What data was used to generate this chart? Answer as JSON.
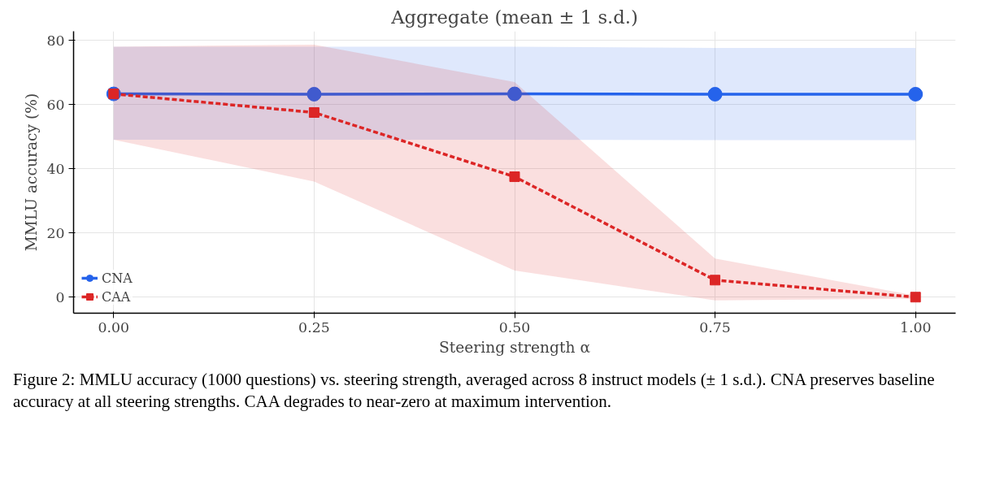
{
  "chart_data": {
    "type": "line",
    "title": "Aggregate (mean ± 1 s.d.)",
    "xlabel": "Steering strength α",
    "ylabel": "MMLU accuracy (%)",
    "x": [
      0,
      0.25,
      0.5,
      0.75,
      1.0
    ],
    "series": [
      {
        "name": "CNA",
        "color": "#2563eb",
        "marker": "circle",
        "line_style": "solid",
        "values": [
          63.3,
          63.2,
          63.3,
          63.2,
          63.2
        ],
        "lower": [
          49,
          49,
          49,
          48.9,
          48.9
        ],
        "upper": [
          78,
          78,
          78,
          77.6,
          77.6
        ]
      },
      {
        "name": "CAA",
        "color": "#dc2626",
        "marker": "square",
        "line_style": "dashed",
        "values": [
          63.3,
          57.5,
          37.5,
          5.3,
          0
        ],
        "lower": [
          49,
          36,
          8.3,
          -1,
          -0.5
        ],
        "upper": [
          78,
          78.6,
          67,
          12,
          0.5
        ]
      }
    ],
    "xlim": [
      -0.05,
      1.05
    ],
    "ylim": [
      -5,
      82.8
    ],
    "xticks": [
      {
        "value": 0,
        "label": "0.00"
      },
      {
        "value": 0.25,
        "label": "0.25"
      },
      {
        "value": 0.5,
        "label": "0.50"
      },
      {
        "value": 0.75,
        "label": "0.75"
      },
      {
        "value": 1.0,
        "label": "1.00"
      }
    ],
    "yticks": [
      0,
      20,
      40,
      60,
      80
    ],
    "grid": true,
    "legend": "bottom left",
    "annotations": [
      "Figure 2: MMLU accuracy (1000 questions) vs. steering strength, averaged across 8 instruct models (± 1 s.d.). CNA preserves baseline accuracy at all steering strengths. CAA degrades to near-zero at maximum intervention."
    ]
  }
}
